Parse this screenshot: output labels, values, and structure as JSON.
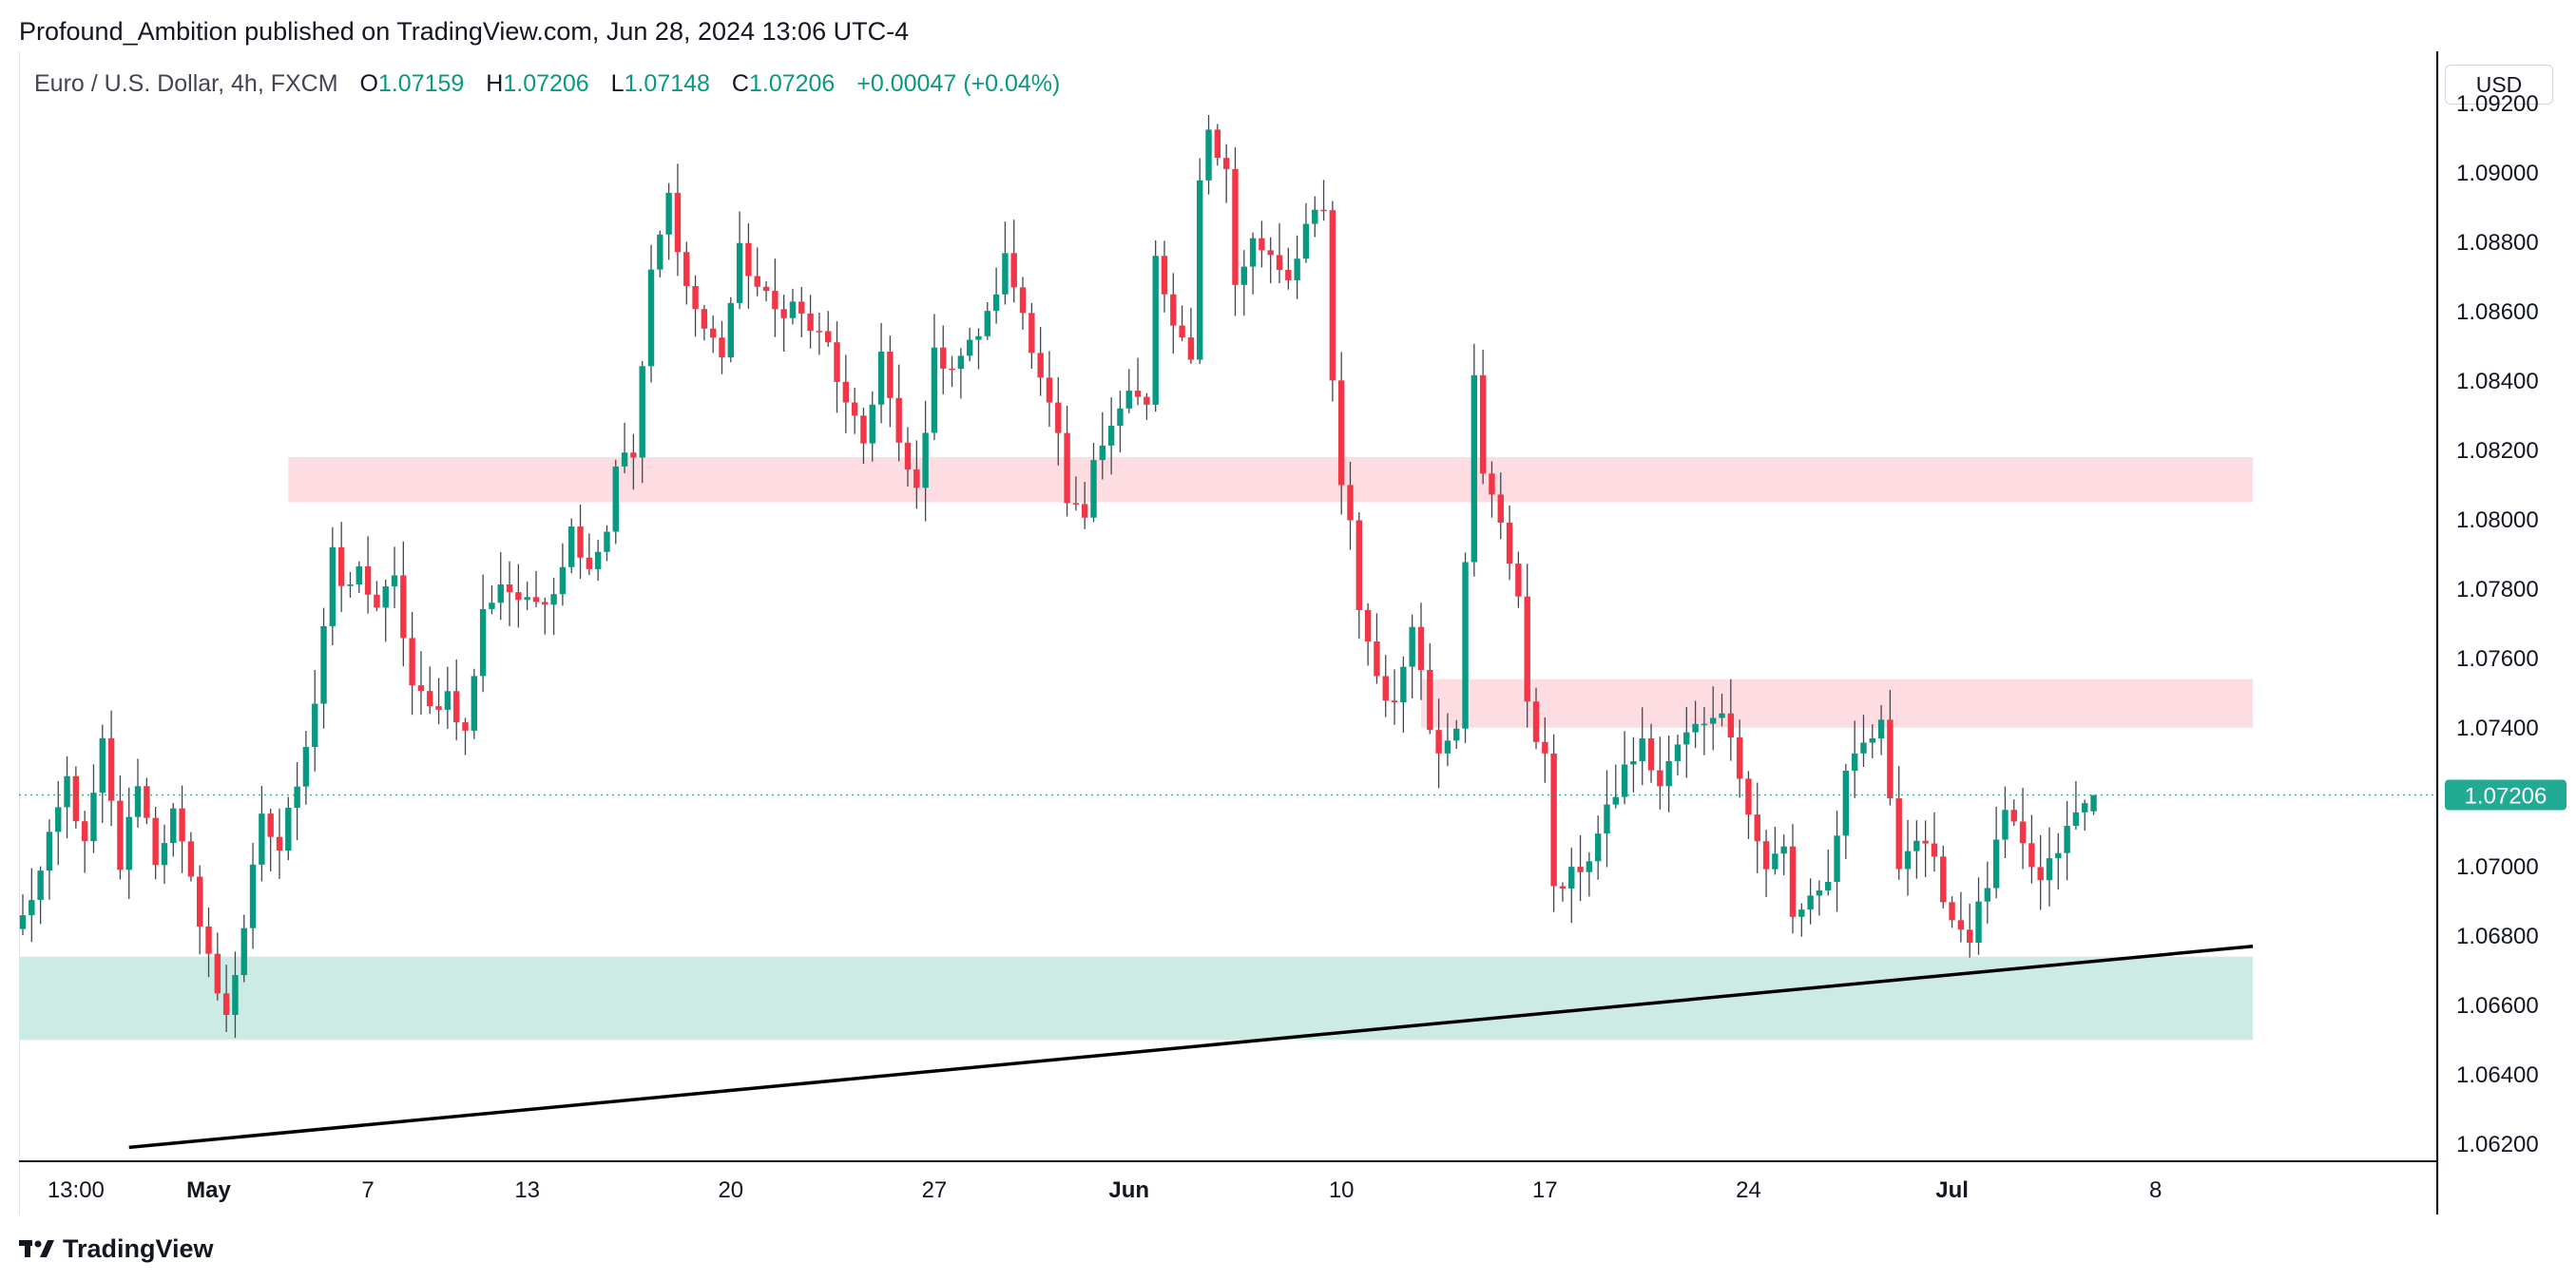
{
  "header": {
    "published": "Profound_Ambition published on TradingView.com, Jun 28, 2024 13:06 UTC-4"
  },
  "legend": {
    "symbol": "Euro / U.S. Dollar, 4h, FXCM",
    "open_label": "O",
    "open": "1.07159",
    "high_label": "H",
    "high": "1.07206",
    "low_label": "L",
    "low": "1.07148",
    "close_label": "C",
    "close": "1.07206",
    "change": "+0.00047 (+0.04%)"
  },
  "currency": "USD",
  "footer": {
    "brand": "TradingView"
  },
  "colors": {
    "up": "#089981",
    "down": "#f23645",
    "price_tag": "#22ab94",
    "supply_zone": "#fddde1",
    "demand_zone": "#cdebe5",
    "trendline": "#000000"
  },
  "chart_data": {
    "type": "candlestick",
    "timeframe": "4h",
    "y_range": [
      1.0615,
      1.0935
    ],
    "y_ticks": [
      "1.09200",
      "1.09000",
      "1.08800",
      "1.08600",
      "1.08400",
      "1.08200",
      "1.08000",
      "1.07800",
      "1.07600",
      "1.07400",
      "1.07000",
      "1.06800",
      "1.06600",
      "1.06400",
      "1.06200"
    ],
    "x_ticks": [
      {
        "label": "13:00",
        "idx": 6
      },
      {
        "label": "May",
        "idx": 21,
        "bold": true
      },
      {
        "label": "7",
        "idx": 39
      },
      {
        "label": "13",
        "idx": 57
      },
      {
        "label": "20",
        "idx": 80
      },
      {
        "label": "27",
        "idx": 103
      },
      {
        "label": "Jun",
        "idx": 125,
        "bold": true
      },
      {
        "label": "10",
        "idx": 149
      },
      {
        "label": "17",
        "idx": 172
      },
      {
        "label": "24",
        "idx": 195
      },
      {
        "label": "Jul",
        "idx": 218,
        "bold": true
      },
      {
        "label": "8",
        "idx": 241
      }
    ],
    "last_price": "1.07206",
    "zones": [
      {
        "kind": "supply",
        "from_idx": 30,
        "to_idx": 252,
        "top": 1.0818,
        "bottom": 1.0805
      },
      {
        "kind": "supply",
        "from_idx": 158,
        "to_idx": 252,
        "top": 1.0754,
        "bottom": 1.074
      },
      {
        "kind": "demand",
        "from_idx": -1,
        "to_idx": 252,
        "top": 1.0674,
        "bottom": 1.065
      }
    ],
    "trendline": {
      "from": [
        12,
        1.0619
      ],
      "to": [
        252,
        1.0677
      ]
    },
    "anchors": [
      [
        0,
        1.0685
      ],
      [
        2,
        1.0698
      ],
      [
        5,
        1.0725
      ],
      [
        7,
        1.0705
      ],
      [
        9,
        1.0735
      ],
      [
        11,
        1.07
      ],
      [
        13,
        1.0725
      ],
      [
        15,
        1.0702
      ],
      [
        17,
        1.0715
      ],
      [
        19,
        1.0695
      ],
      [
        21,
        1.0675
      ],
      [
        22,
        1.0662
      ],
      [
        23,
        1.0658
      ],
      [
        24,
        1.067
      ],
      [
        25,
        1.0683
      ],
      [
        27,
        1.0713
      ],
      [
        29,
        1.0705
      ],
      [
        31,
        1.0725
      ],
      [
        33,
        1.0748
      ],
      [
        35,
        1.0792
      ],
      [
        36,
        1.0778
      ],
      [
        38,
        1.0785
      ],
      [
        40,
        1.0775
      ],
      [
        42,
        1.0782
      ],
      [
        44,
        1.0752
      ],
      [
        46,
        1.0745
      ],
      [
        48,
        1.075
      ],
      [
        50,
        1.0738
      ],
      [
        52,
        1.0773
      ],
      [
        54,
        1.0782
      ],
      [
        57,
        1.0775
      ],
      [
        60,
        1.078
      ],
      [
        62,
        1.0797
      ],
      [
        64,
        1.0787
      ],
      [
        66,
        1.0797
      ],
      [
        67,
        1.0817
      ],
      [
        69,
        1.0818
      ],
      [
        71,
        1.087
      ],
      [
        73,
        1.0893
      ],
      [
        75,
        1.0867
      ],
      [
        77,
        1.0855
      ],
      [
        79,
        1.0848
      ],
      [
        81,
        1.0877
      ],
      [
        83,
        1.0867
      ],
      [
        85,
        1.086
      ],
      [
        87,
        1.0862
      ],
      [
        89,
        1.0855
      ],
      [
        91,
        1.085
      ],
      [
        93,
        1.0832
      ],
      [
        95,
        1.0822
      ],
      [
        97,
        1.0848
      ],
      [
        99,
        1.082
      ],
      [
        101,
        1.0808
      ],
      [
        103,
        1.0847
      ],
      [
        105,
        1.0845
      ],
      [
        107,
        1.085
      ],
      [
        109,
        1.0858
      ],
      [
        111,
        1.0875
      ],
      [
        113,
        1.086
      ],
      [
        115,
        1.0842
      ],
      [
        117,
        1.0823
      ],
      [
        118,
        1.0803
      ],
      [
        120,
        1.08
      ],
      [
        121,
        1.0815
      ],
      [
        123,
        1.083
      ],
      [
        125,
        1.0837
      ],
      [
        127,
        1.0832
      ],
      [
        128,
        1.0875
      ],
      [
        130,
        1.0855
      ],
      [
        132,
        1.0845
      ],
      [
        133,
        1.09
      ],
      [
        134,
        1.0912
      ],
      [
        136,
        1.09
      ],
      [
        137,
        1.0868
      ],
      [
        139,
        1.088
      ],
      [
        141,
        1.0877
      ],
      [
        143,
        1.087
      ],
      [
        145,
        1.0885
      ],
      [
        147,
        1.0888
      ],
      [
        148,
        1.084
      ],
      [
        149,
        1.0808
      ],
      [
        150,
        1.0798
      ],
      [
        151,
        1.0775
      ],
      [
        153,
        1.0755
      ],
      [
        155,
        1.0745
      ],
      [
        157,
        1.0772
      ],
      [
        159,
        1.074
      ],
      [
        160,
        1.0735
      ],
      [
        162,
        1.0742
      ],
      [
        163,
        1.079
      ],
      [
        164,
        1.084
      ],
      [
        165,
        1.0812
      ],
      [
        167,
        1.08
      ],
      [
        169,
        1.0778
      ],
      [
        170,
        1.0745
      ],
      [
        171,
        1.0737
      ],
      [
        172,
        1.0735
      ],
      [
        173,
        1.0692
      ],
      [
        175,
        1.0697
      ],
      [
        177,
        1.0703
      ],
      [
        179,
        1.0715
      ],
      [
        181,
        1.0728
      ],
      [
        183,
        1.0735
      ],
      [
        185,
        1.0723
      ],
      [
        187,
        1.0735
      ],
      [
        189,
        1.074
      ],
      [
        191,
        1.0745
      ],
      [
        193,
        1.074
      ],
      [
        195,
        1.0715
      ],
      [
        197,
        1.07
      ],
      [
        199,
        1.0705
      ],
      [
        200,
        1.0685
      ],
      [
        202,
        1.0692
      ],
      [
        204,
        1.0695
      ],
      [
        206,
        1.0725
      ],
      [
        208,
        1.0735
      ],
      [
        210,
        1.074
      ],
      [
        212,
        1.0702
      ],
      [
        214,
        1.0708
      ],
      [
        216,
        1.07
      ],
      [
        218,
        1.0685
      ],
      [
        220,
        1.068
      ],
      [
        222,
        1.0695
      ],
      [
        224,
        1.0715
      ],
      [
        226,
        1.0705
      ],
      [
        228,
        1.0695
      ],
      [
        230,
        1.0705
      ],
      [
        232,
        1.0715
      ],
      [
        234,
        1.072
      ]
    ],
    "last_candle": {
      "open": 1.07159,
      "high": 1.07206,
      "low": 1.07148,
      "close": 1.07206
    }
  }
}
